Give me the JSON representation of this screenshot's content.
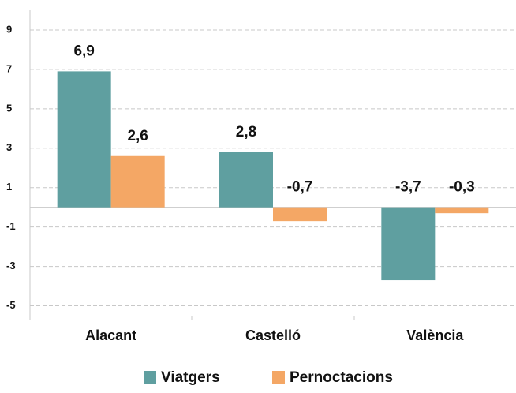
{
  "chart_data": {
    "type": "bar",
    "categories": [
      "Alacant",
      "Castelló",
      "València"
    ],
    "series": [
      {
        "name": "Viatgers",
        "color": "#5f9fa0",
        "values": [
          6.9,
          2.8,
          -3.7
        ],
        "value_labels": [
          "6,9",
          "2,8",
          "-3,7"
        ]
      },
      {
        "name": "Pernoctacions",
        "color": "#f4a765",
        "values": [
          2.6,
          -0.7,
          -0.3
        ],
        "value_labels": [
          "2,6",
          "-0,7",
          "-0,3"
        ]
      }
    ],
    "ylim": [
      -5.5,
      10
    ],
    "yticks": [
      9,
      7,
      5,
      3,
      1,
      -1,
      -3,
      -5
    ],
    "grid": true,
    "legend": "bottom"
  }
}
